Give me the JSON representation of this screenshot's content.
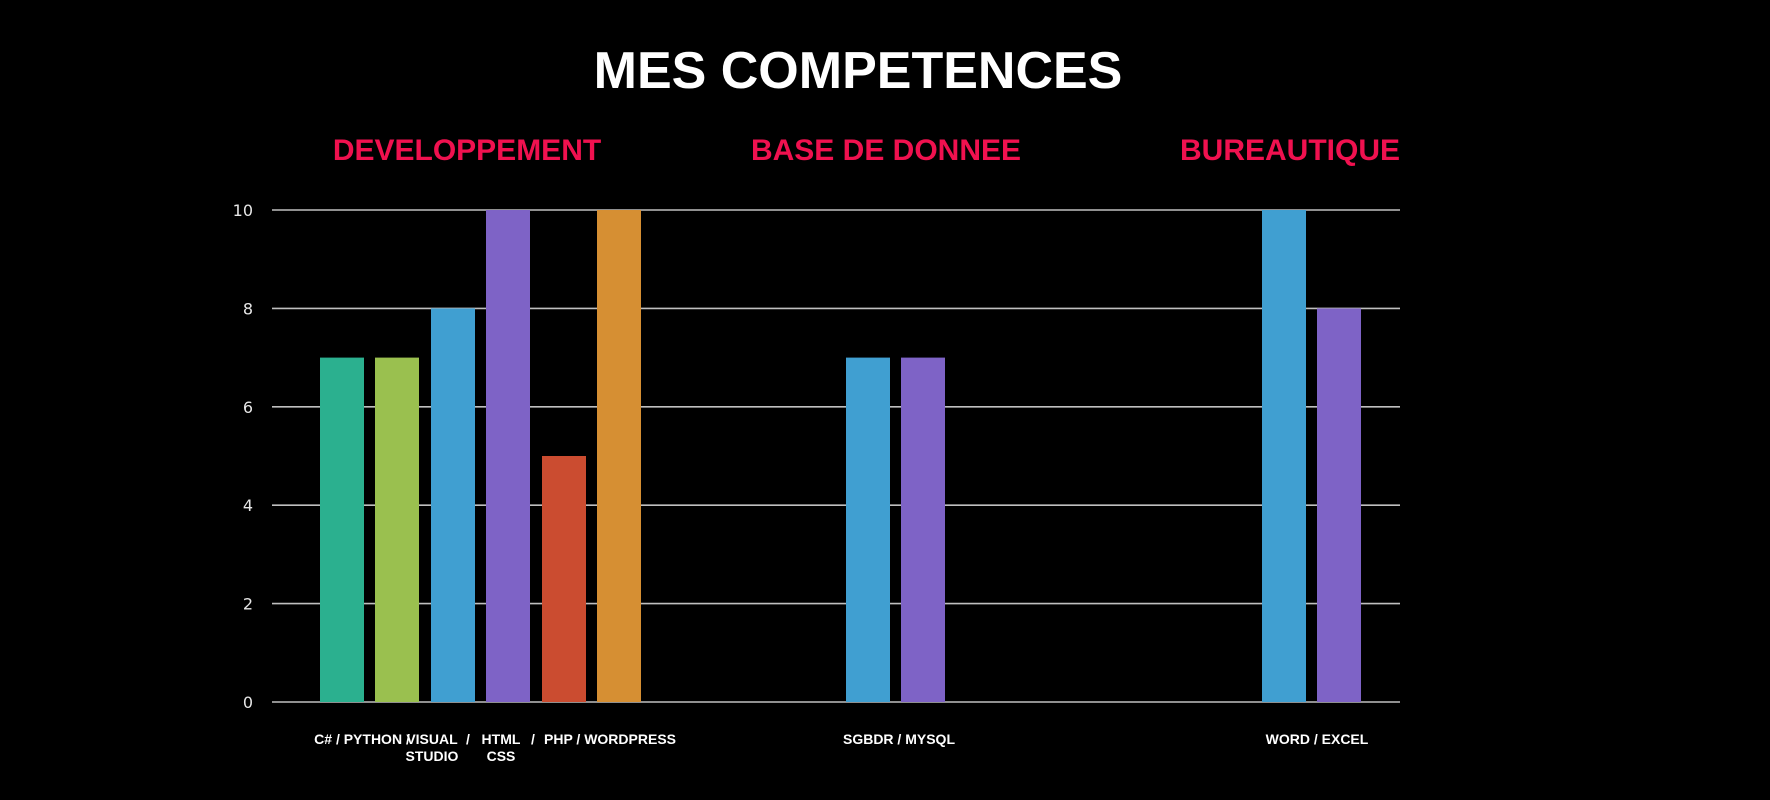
{
  "chart_data": {
    "type": "bar",
    "title": "MES COMPETENCES",
    "ylim": [
      0,
      10
    ],
    "yticks": [
      0,
      2,
      4,
      6,
      8,
      10
    ],
    "grid": true,
    "colors": {
      "background": "#000000",
      "title": "#ffffff",
      "group_label": "#f0114f",
      "grid": "#bfbfbf",
      "tick_label": "#e6e6e6",
      "category_label": "#ffffff"
    },
    "groups": [
      {
        "label": "DEVELOPPEMENT",
        "axis_labels": [
          [
            "C# / PYTHON /"
          ],
          [
            "VISUAL",
            "STUDIO"
          ],
          [
            "/"
          ],
          [
            "HTML",
            "CSS"
          ],
          [
            "/"
          ],
          [
            "PHP / WORDPRESS"
          ]
        ],
        "bars": [
          {
            "value": 7,
            "color": "#2bb08f"
          },
          {
            "value": 7,
            "color": "#9ac04f"
          },
          {
            "value": 8,
            "color": "#409fd1"
          },
          {
            "value": 10,
            "color": "#7e63c6"
          },
          {
            "value": 5,
            "color": "#cb4c30"
          },
          {
            "value": 10,
            "color": "#d68f33"
          }
        ]
      },
      {
        "label": "BASE DE DONNEE",
        "axis_labels": [
          [
            "SGBDR / MYSQL"
          ]
        ],
        "bars": [
          {
            "value": 7,
            "color": "#409fd1"
          },
          {
            "value": 7,
            "color": "#7e63c6"
          }
        ]
      },
      {
        "label": "BUREAUTIQUE",
        "axis_labels": [
          [
            "WORD / EXCEL"
          ]
        ],
        "bars": [
          {
            "value": 10,
            "color": "#409fd1"
          },
          {
            "value": 8,
            "color": "#7e63c6"
          }
        ]
      }
    ]
  }
}
